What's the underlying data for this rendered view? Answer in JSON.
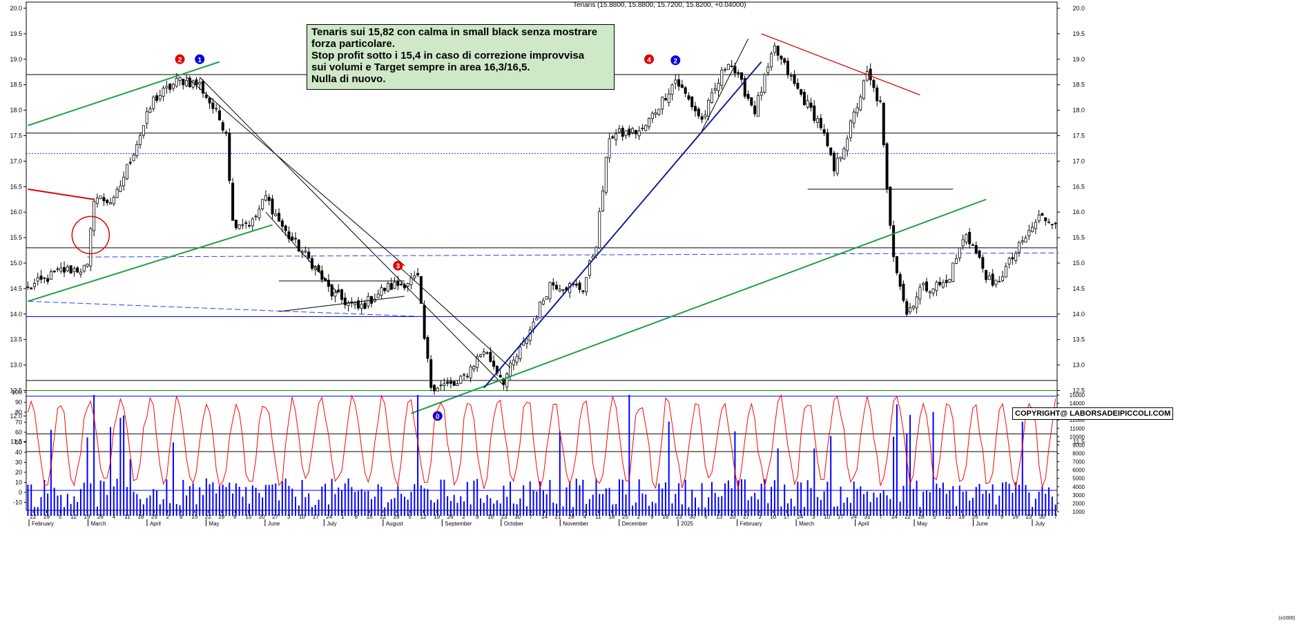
{
  "chart_data": [
    {
      "type": "candlestick",
      "title": "Tenaris (15.8800, 15.8800, 15.7200, 15.8200, +0.04000)",
      "ylim": [
        11.0,
        20.0
      ],
      "y_ticks": [
        "20.0",
        "19.5",
        "19.0",
        "18.5",
        "18.0",
        "17.5",
        "17.0",
        "16.5",
        "16.0",
        "15.5",
        "15.0",
        "14.5",
        "14.0",
        "13.5",
        "13.0",
        "12.5",
        "12.0",
        "11.5"
      ],
      "grid": false,
      "anchors": [
        {
          "i": 0,
          "v": 14.5
        },
        {
          "i": 10,
          "v": 14.85
        },
        {
          "i": 18,
          "v": 14.9
        },
        {
          "i": 20,
          "v": 16.3
        },
        {
          "i": 26,
          "v": 16.2
        },
        {
          "i": 38,
          "v": 18.2
        },
        {
          "i": 46,
          "v": 18.6
        },
        {
          "i": 52,
          "v": 18.5
        },
        {
          "i": 60,
          "v": 17.6
        },
        {
          "i": 62,
          "v": 15.8
        },
        {
          "i": 68,
          "v": 15.8
        },
        {
          "i": 72,
          "v": 16.3
        },
        {
          "i": 78,
          "v": 15.6
        },
        {
          "i": 86,
          "v": 15.0
        },
        {
          "i": 92,
          "v": 14.4
        },
        {
          "i": 100,
          "v": 14.1
        },
        {
          "i": 108,
          "v": 14.5
        },
        {
          "i": 118,
          "v": 14.7
        },
        {
          "i": 120,
          "v": 13.5
        },
        {
          "i": 122,
          "v": 12.6
        },
        {
          "i": 130,
          "v": 12.6
        },
        {
          "i": 138,
          "v": 13.3
        },
        {
          "i": 144,
          "v": 12.7
        },
        {
          "i": 150,
          "v": 13.4
        },
        {
          "i": 158,
          "v": 14.6
        },
        {
          "i": 168,
          "v": 14.5
        },
        {
          "i": 172,
          "v": 15.4
        },
        {
          "i": 176,
          "v": 17.5
        },
        {
          "i": 186,
          "v": 17.6
        },
        {
          "i": 196,
          "v": 18.6
        },
        {
          "i": 204,
          "v": 17.8
        },
        {
          "i": 212,
          "v": 19.0
        },
        {
          "i": 220,
          "v": 18.0
        },
        {
          "i": 226,
          "v": 19.2
        },
        {
          "i": 232,
          "v": 18.5
        },
        {
          "i": 240,
          "v": 17.7
        },
        {
          "i": 244,
          "v": 16.8
        },
        {
          "i": 248,
          "v": 17.5
        },
        {
          "i": 254,
          "v": 18.7
        },
        {
          "i": 258,
          "v": 18.1
        },
        {
          "i": 260,
          "v": 16.4
        },
        {
          "i": 262,
          "v": 15.2
        },
        {
          "i": 266,
          "v": 14.0
        },
        {
          "i": 270,
          "v": 14.5
        },
        {
          "i": 278,
          "v": 14.6
        },
        {
          "i": 284,
          "v": 15.6
        },
        {
          "i": 292,
          "v": 14.5
        },
        {
          "i": 300,
          "v": 15.3
        },
        {
          "i": 306,
          "v": 15.9
        },
        {
          "i": 310,
          "v": 15.85
        }
      ],
      "price_levels": [
        18.7,
        17.55,
        17.15,
        15.3,
        13.95,
        12.5,
        11.65,
        11.3
      ],
      "annotations": {
        "note_lines": [
          "Tenaris sui 15,82 con calma in small black senza mostrare",
          "forza particolare.",
          "Stop profit sotto i 15,4 in caso di correzione improvvisa",
          "sui volumi e  Target sempre in area 16,3/16,5.",
          "Nulla di nuovo."
        ],
        "markers": [
          {
            "label": "2",
            "color": "#e00000",
            "i": 46,
            "v": 19.0
          },
          {
            "label": "1",
            "color": "#0000e0",
            "i": 52,
            "v": 19.0
          },
          {
            "label": "3",
            "color": "#e00000",
            "i": 112,
            "v": 14.95
          },
          {
            "label": "0",
            "color": "#0000e0",
            "i": 124,
            "v": 12.0
          },
          {
            "label": "4",
            "color": "#e00000",
            "i": 188,
            "v": 19.0
          },
          {
            "label": "2",
            "color": "#0000e0",
            "i": 196,
            "v": 18.98
          }
        ],
        "copyright": "COPYRIGHT@ LABORSADEIPICCOLI.COM"
      }
    },
    {
      "type": "volume-oscillator",
      "left_ticks": [
        "100",
        "90",
        "80",
        "70",
        "60",
        "50",
        "40",
        "30",
        "20",
        "10",
        "0",
        "-10"
      ],
      "right_ticks": [
        "15000",
        "14000",
        "13000",
        "12000",
        "11000",
        "10000",
        "9000",
        "8000",
        "7000",
        "6000",
        "5000",
        "4000",
        "3000",
        "2000",
        "1000"
      ],
      "oscillator_color": "#ff0000",
      "volume_color": "#0000ff",
      "footnote": "(x1000)"
    }
  ],
  "x_axis": {
    "day_ticks": [
      "22",
      "29",
      "5",
      "12",
      "19",
      "26",
      "4",
      "11",
      "18",
      "25",
      "2",
      "8",
      "15",
      "22",
      "29",
      "6",
      "13",
      "20",
      "27",
      "3",
      "10",
      "17",
      "24",
      "1",
      "8",
      "15",
      "22",
      "29",
      "5",
      "12",
      "19",
      "26",
      "2",
      "9",
      "16",
      "23",
      "30",
      "7",
      "14",
      "21",
      "28",
      "4",
      "11",
      "18",
      "25",
      "2",
      "9",
      "16",
      "23",
      "30",
      "6",
      "13",
      "20",
      "27",
      "3",
      "10",
      "17",
      "24",
      "3",
      "10",
      "17",
      "24",
      "31",
      "7",
      "14",
      "22",
      "28",
      "5",
      "12",
      "19",
      "26",
      "2",
      "9",
      "16",
      "23",
      "30",
      "7"
    ],
    "month_ticks": [
      "February",
      "March",
      "April",
      "May",
      "June",
      "July",
      "August",
      "September",
      "October",
      "November",
      "December",
      "2025",
      "February",
      "March",
      "April",
      "May",
      "June",
      "July"
    ]
  }
}
